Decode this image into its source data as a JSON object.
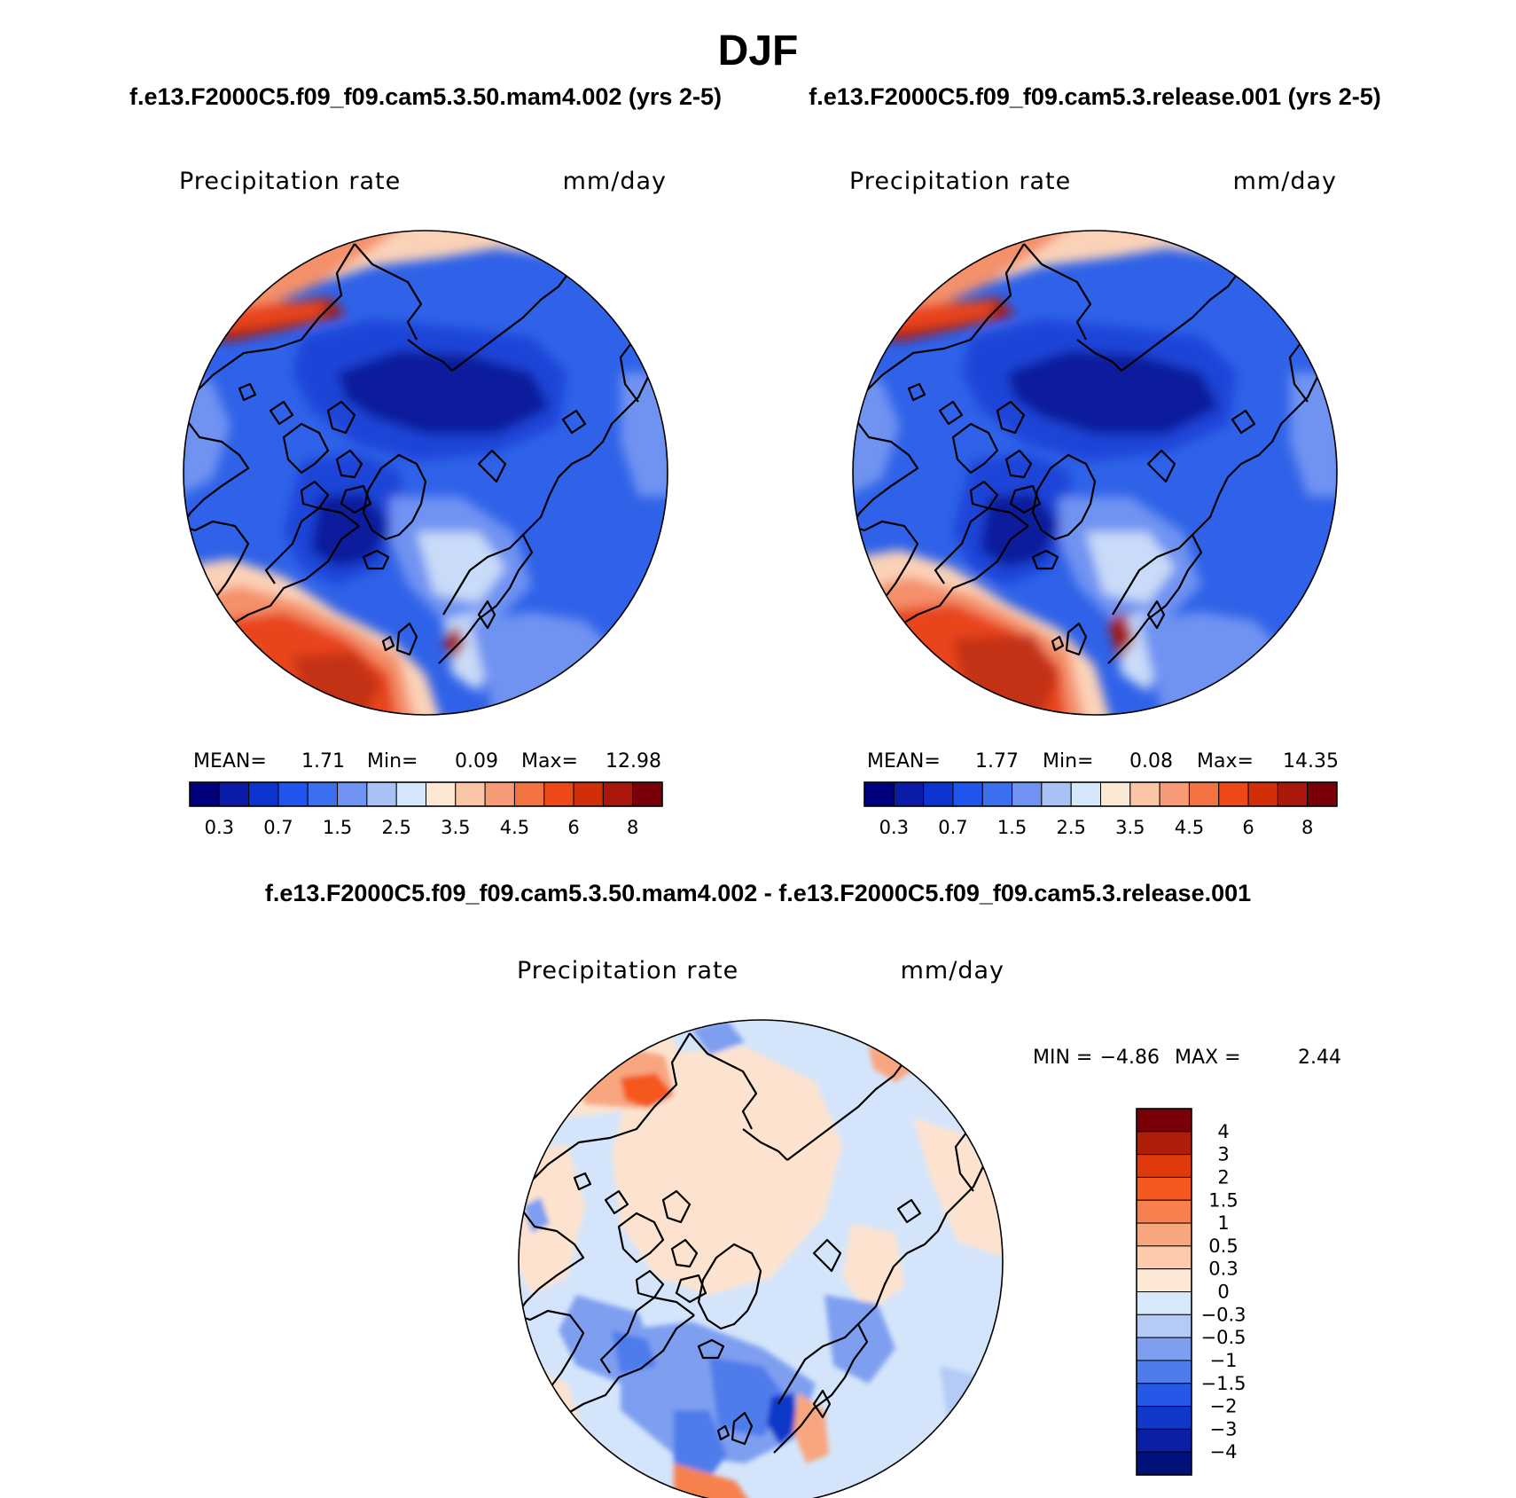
{
  "figure": {
    "season": "DJF",
    "top_left": {
      "case": "f.e13.F2000C5.f09_f09.cam5.3.50.mam4.002 (yrs 2-5)",
      "variable": "Precipitation rate",
      "units": "mm/day",
      "stats": {
        "mean_label": "MEAN=",
        "mean": "1.71",
        "min_label": "Min=",
        "min": "0.09",
        "max_label": "Max=",
        "max": "12.98"
      }
    },
    "top_right": {
      "case": "f.e13.F2000C5.f09_f09.cam5.3.release.001 (yrs 2-5)",
      "variable": "Precipitation rate",
      "units": "mm/day",
      "stats": {
        "mean_label": "MEAN=",
        "mean": "1.77",
        "min_label": "Min=",
        "min": "0.08",
        "max_label": "Max=",
        "max": "14.35"
      }
    },
    "bottom": {
      "title": "f.e13.F2000C5.f09_f09.cam5.3.50.mam4.002 - f.e13.F2000C5.f09_f09.cam5.3.release.001",
      "variable": "Precipitation rate",
      "units": "mm/day",
      "stats": {
        "min_label": "MIN =",
        "min": "−4.86",
        "max_label": "MAX =",
        "max": "2.44"
      }
    },
    "abs_colorbar": {
      "colors": [
        "#00007f",
        "#0a1ba8",
        "#0d33d1",
        "#1f55ee",
        "#3a6ff0",
        "#6f93f2",
        "#a9c2f4",
        "#d6e6fb",
        "#fde8d6",
        "#fbc6a8",
        "#f79b76",
        "#f4723f",
        "#ee4817",
        "#d22e0a",
        "#a9180a",
        "#7a0008"
      ],
      "labels": [
        "0.3",
        "0.7",
        "1.5",
        "2.5",
        "3.5",
        "4.5",
        "6",
        "8"
      ]
    },
    "diff_colorbar": {
      "colors": [
        "#7a0008",
        "#b01d08",
        "#e03a0c",
        "#f4581e",
        "#f6814f",
        "#f8a67f",
        "#fbcbab",
        "#fde8d6",
        "#d8e8fb",
        "#b3cbf5",
        "#7e9ff0",
        "#4f7ceb",
        "#2558e6",
        "#0f37c8",
        "#0a1fa3",
        "#00127a"
      ],
      "labels": [
        "4",
        "3",
        "2",
        "1.5",
        "1",
        "0.5",
        "0.3",
        "0",
        "−0.3",
        "−0.5",
        "−1",
        "−1.5",
        "−2",
        "−3",
        "−4"
      ]
    },
    "map_colors": {
      "deep_blue": "#0d1f9c",
      "mid_blue": "#1d44d8",
      "blue": "#2f62e8",
      "light_blue": "#6f93f2",
      "pale_blue": "#c9dbf8",
      "pale_red": "#fbd2b8",
      "salmon": "#f4906a",
      "red": "#e8451a",
      "dark_red": "#a8150a",
      "diff_base_blue": "#d4e5fb",
      "diff_base_red": "#fde3cf"
    }
  }
}
